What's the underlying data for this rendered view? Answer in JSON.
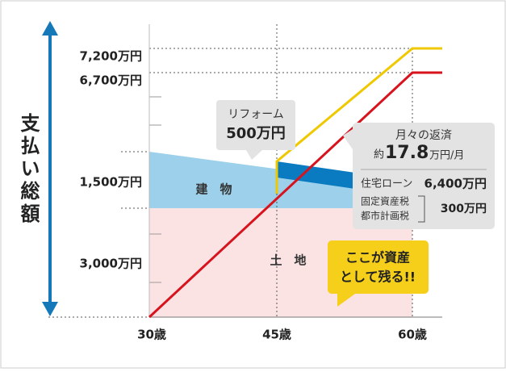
{
  "axis_title": "支払い総額",
  "y_labels": [
    "7,200万円",
    "6,700万円",
    "1,500万円",
    "3,000万円"
  ],
  "x_labels": [
    "30歳",
    "45歳",
    "60歳"
  ],
  "areas": {
    "building": "建　物",
    "land": "土　地"
  },
  "reform": {
    "line1": "リフォーム",
    "line2": "500万円"
  },
  "repayment": {
    "title": "月々の返済",
    "prefix": "約",
    "amount": "17.8",
    "unit": "万円/月",
    "loan_label": "住宅ローン",
    "loan_value": "6,400万円",
    "tax_label1": "固定資産税",
    "tax_label2": "都市計画税",
    "tax_value": "300万円"
  },
  "asset_note": {
    "line1": "ここが資産",
    "line2": "として残る!!"
  }
}
